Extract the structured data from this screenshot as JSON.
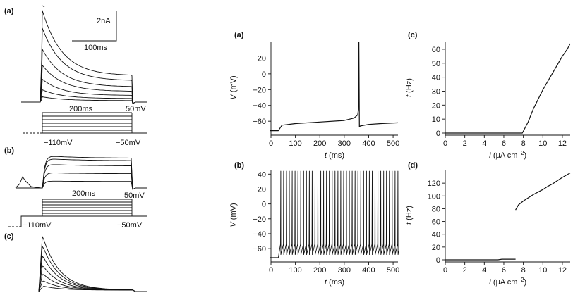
{
  "panel_labels": {
    "left_a": "(a)",
    "left_b": "(b)",
    "left_c": "(c)",
    "mid_a": "(a)",
    "mid_b": "(b)",
    "right_c": "(c)",
    "right_d": "(d)"
  },
  "left": {
    "a": {
      "scale_current": "2nA",
      "scale_time": "100ms",
      "duration": "200ms",
      "v_top": "50mV",
      "v_hold": "−110mV",
      "v_bottom": "−50mV"
    },
    "b": {
      "duration": "200ms",
      "v_top": "50mV",
      "v_hold": "−110mV",
      "v_bottom": "−50mV"
    }
  },
  "chart_data": [
    {
      "id": "a",
      "type": "line",
      "xlabel": "t (ms)",
      "xlabel_var": "t",
      "xlabel_unit": " (ms)",
      "ylabel": "V (mV)",
      "ylabel_var": "V",
      "ylabel_unit": " (mV)",
      "xlim": [
        0,
        520
      ],
      "ylim": [
        -75,
        40
      ],
      "xticks": [
        0,
        100,
        200,
        300,
        400,
        500
      ],
      "yticks": [
        -60,
        -40,
        -20,
        0,
        20
      ],
      "ytick_labels": [
        "−60",
        "−40",
        "−20",
        "0",
        "20"
      ],
      "series": [
        {
          "x": [
            -5,
            30,
            45,
            100,
            200,
            300,
            340,
            355,
            358,
            360,
            362,
            366,
            400,
            450,
            520
          ],
          "y": [
            -72,
            -72,
            -65,
            -63,
            -61,
            -59,
            -56,
            -52,
            -45,
            40,
            -67,
            -66,
            -64,
            -63,
            -62
          ]
        }
      ]
    },
    {
      "id": "b",
      "type": "line",
      "xlabel": "t (ms)",
      "xlabel_var": "t",
      "xlabel_unit": " (ms)",
      "ylabel": "V (mV)",
      "ylabel_var": "V",
      "ylabel_unit": " (mV)",
      "xlim": [
        0,
        520
      ],
      "ylim": [
        -75,
        45
      ],
      "xticks": [
        0,
        100,
        200,
        300,
        400,
        500
      ],
      "yticks": [
        -60,
        -40,
        -20,
        0,
        20,
        40
      ],
      "ytick_labels": [
        "−60",
        "−40",
        "−20",
        "0",
        "20",
        "40"
      ],
      "spikes": {
        "start_ms": 30,
        "count": 42,
        "interval_ms": 11.7,
        "peak_mv": 44,
        "trough_mv": -68,
        "rest_mv": -72
      }
    },
    {
      "id": "c",
      "type": "line",
      "xlabel": "I (μA cm−2)",
      "xlabel_var": "I",
      "xlabel_unit": " (μA cm",
      "xlabel_exp": "−2",
      "xlabel_close": ")",
      "ylabel": "f (Hz)",
      "ylabel_var": "f",
      "ylabel_unit": " (Hz)",
      "xlim": [
        0,
        12.8
      ],
      "ylim": [
        0,
        65
      ],
      "xticks": [
        0,
        2,
        4,
        6,
        8,
        10,
        12
      ],
      "yticks": [
        0,
        10,
        20,
        30,
        40,
        50,
        60
      ],
      "series": [
        {
          "x": [
            0,
            7.9,
            8.5,
            9.0,
            9.5,
            10.0,
            10.5,
            11.0,
            11.5,
            12.0,
            12.5,
            12.8
          ],
          "y": [
            0,
            0,
            8,
            17,
            24,
            31,
            37,
            43,
            49,
            55,
            60,
            64
          ]
        }
      ]
    },
    {
      "id": "d",
      "type": "line",
      "xlabel": "I (μA cm−2)",
      "xlabel_var": "I",
      "xlabel_unit": " (μA cm",
      "xlabel_exp": "−2",
      "xlabel_close": ")",
      "ylabel": "f (Hz)",
      "ylabel_var": "f",
      "ylabel_unit": " (Hz)",
      "xlim": [
        0,
        12.8
      ],
      "ylim": [
        0,
        140
      ],
      "xticks": [
        0,
        2,
        4,
        6,
        8,
        10,
        12
      ],
      "yticks": [
        0,
        20,
        40,
        60,
        80,
        100,
        120
      ],
      "series": [
        {
          "x": [
            0,
            5.4,
            5.8,
            7.2
          ],
          "y": [
            0,
            0,
            1,
            1
          ]
        },
        {
          "x": [
            7.2,
            7.5,
            8.0,
            8.5,
            9.0,
            9.5,
            10.0,
            10.5,
            11.0,
            11.5,
            12.0,
            12.8
          ],
          "y": [
            78,
            86,
            92,
            97,
            102,
            106,
            110,
            115,
            119,
            124,
            129,
            136
          ]
        }
      ]
    }
  ]
}
